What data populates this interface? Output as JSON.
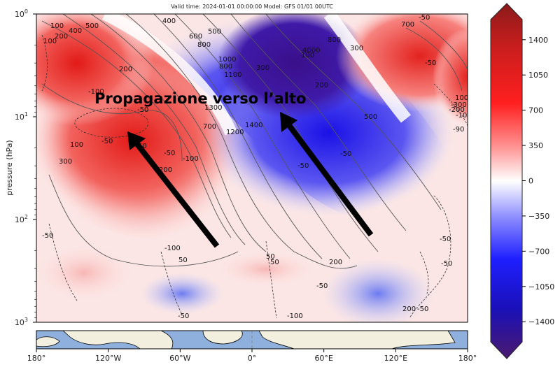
{
  "chart_data": {
    "type": "heatmap",
    "title": "Valid time: 2024-01-01 00:00:00 Model: GFS 01/01 00UTC",
    "ylabel": "pressure (hPa)",
    "y_scale": "log",
    "y_axis_inverted": true,
    "ylim": [
      1000,
      1
    ],
    "xlim": [
      -180,
      180
    ],
    "x_ticks": [
      "180°",
      "120°W",
      "60°W",
      "0°",
      "60°E",
      "120°E",
      "180°"
    ],
    "x_tick_values": [
      -180,
      -120,
      -60,
      0,
      60,
      120,
      180
    ],
    "y_ticks": [
      "10$^0$",
      "10$^1$",
      "10$^2$",
      "10$^3$"
    ],
    "y_tick_values": [
      1,
      10,
      100,
      1000
    ],
    "y_tick_display": [
      {
        "base": "10",
        "exp": "0"
      },
      {
        "base": "10",
        "exp": "1"
      },
      {
        "base": "10",
        "exp": "2"
      },
      {
        "base": "10",
        "exp": "3"
      }
    ],
    "colorbar": {
      "ticks": [
        "1400",
        "1050",
        "700",
        "350",
        "0",
        "−350",
        "−700",
        "−1050",
        "−1400"
      ],
      "tick_values": [
        1400,
        1050,
        700,
        350,
        0,
        -350,
        -700,
        -1050,
        -1400
      ],
      "range": [
        -1600,
        1600
      ],
      "colormap": "seismic",
      "colors": {
        "max": "#8b1a1a",
        "high": "#e8231f",
        "mid": "#ffffff",
        "low": "#1a1aff",
        "min": "#4b1a6e"
      }
    },
    "contour_labels": [
      "100",
      "400",
      "500",
      "200",
      "100",
      "400",
      "600",
      "500",
      "800",
      "1000",
      "800",
      "1100",
      "300",
      "200",
      "-100",
      "1300",
      "-50",
      "1400",
      "1200",
      "700",
      "100",
      "-50",
      "50",
      "-50",
      "-100",
      "300",
      "-50",
      "50",
      "200",
      "100",
      "-50",
      "-50",
      "200",
      "500",
      "800",
      "300",
      "4000",
      "-50",
      "700",
      "-50",
      "100",
      "-300",
      "-200",
      "-100",
      "-90",
      "200",
      "-50",
      "-100",
      "50",
      "-50",
      "200",
      "-50",
      "-50",
      "-100",
      "50",
      "-50"
    ],
    "annotation": "Propagazione verso l’alto",
    "arrow_color": "#000000",
    "minimap": {
      "colors": {
        "ocean": "#8fb0dc",
        "land": "#f2efdf"
      }
    }
  }
}
